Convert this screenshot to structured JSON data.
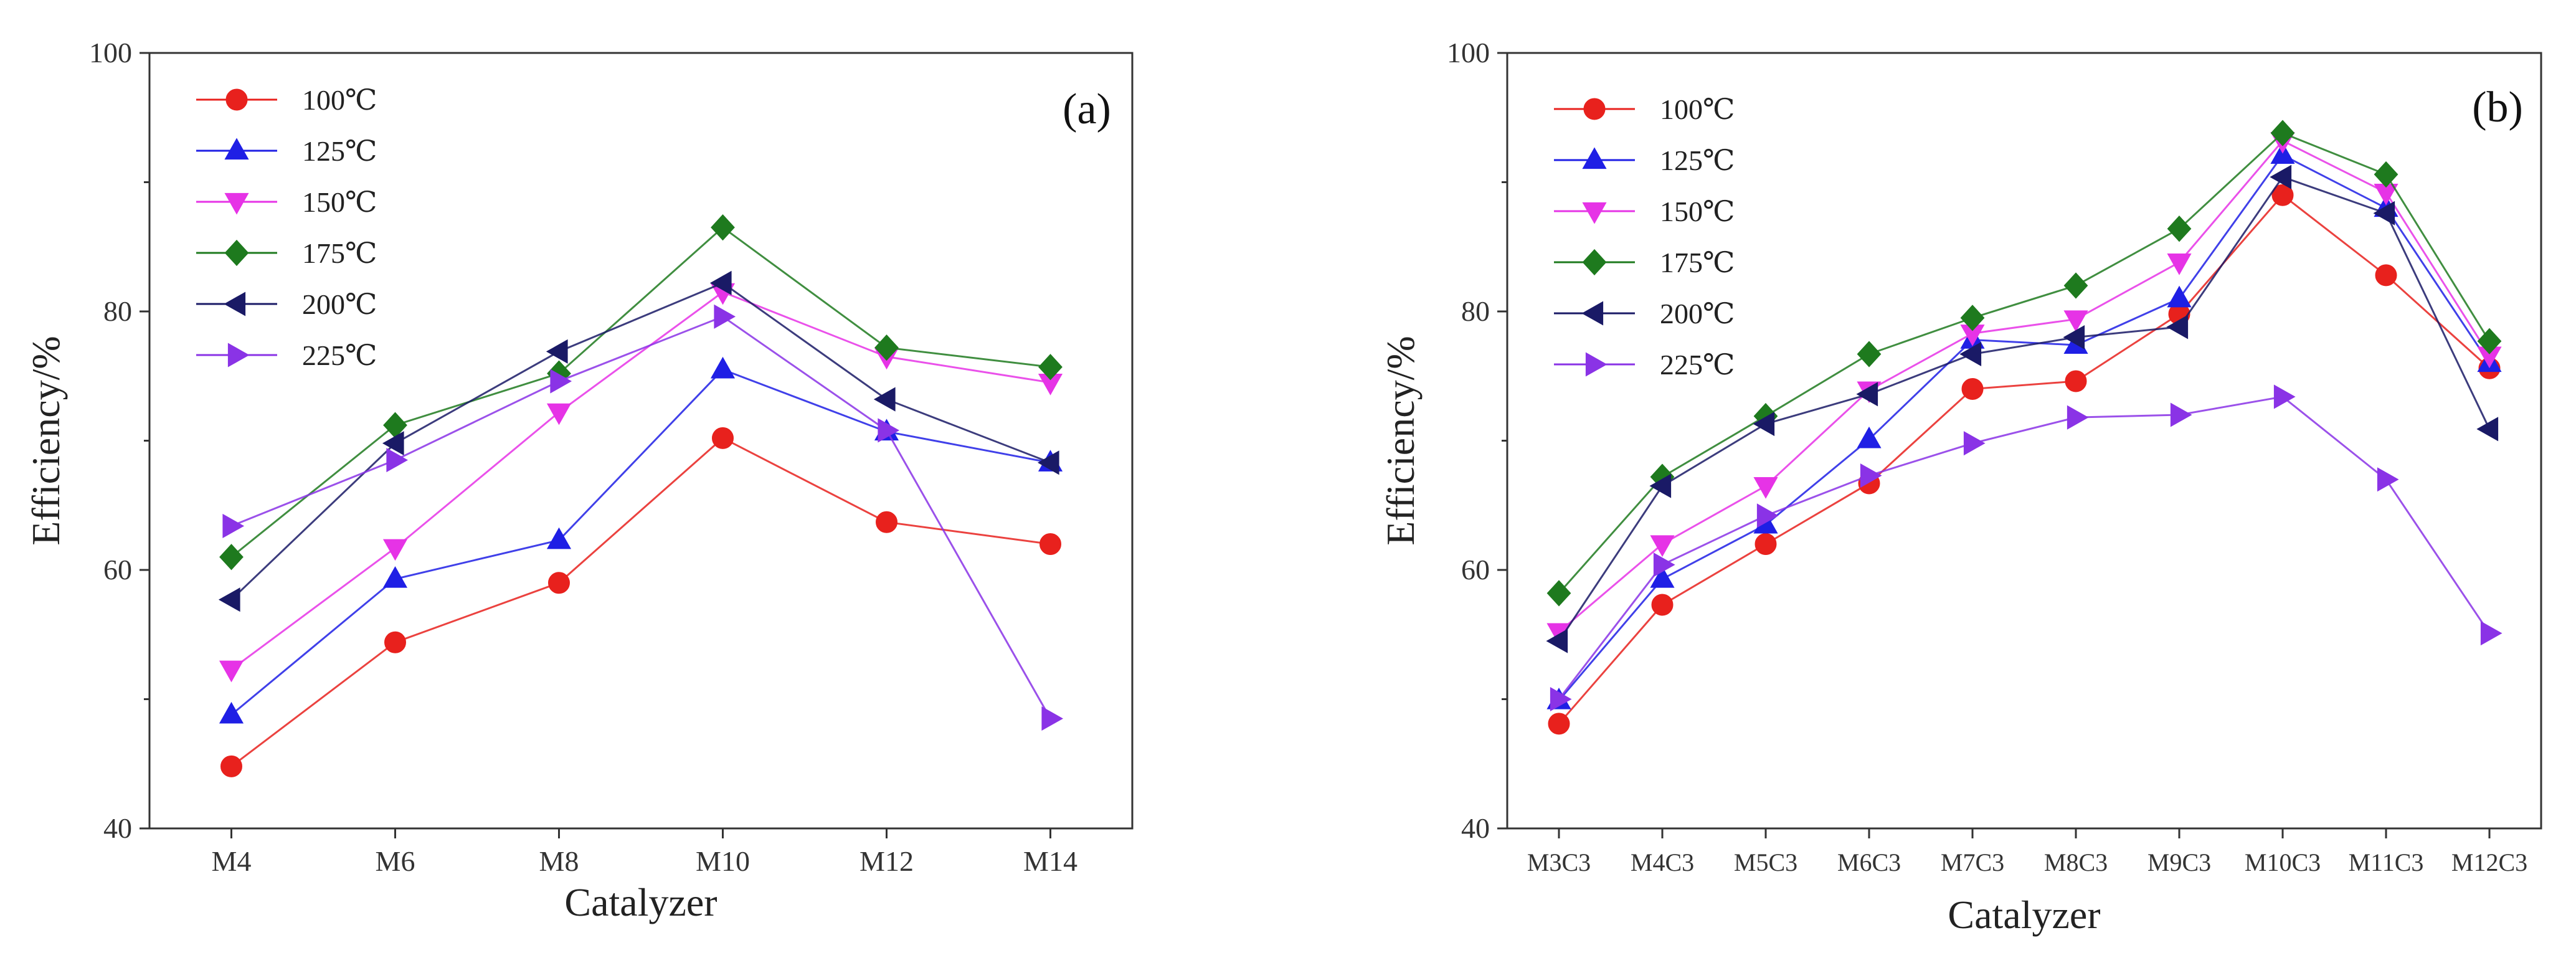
{
  "chart_data": [
    {
      "type": "line",
      "panel_label": "(a)",
      "xlabel": "Catalyzer",
      "ylabel": "Efficiency/%",
      "ylim": [
        40,
        100
      ],
      "yticks": [
        "40",
        "60",
        "80",
        "100"
      ],
      "categories": [
        "M4",
        "M6",
        "M8",
        "M10",
        "M12",
        "M14"
      ],
      "legend_position": "top-left",
      "series": [
        {
          "name": "100℃",
          "color": "#e8211d",
          "marker": "circle",
          "values": [
            44.8,
            54.4,
            59.0,
            70.2,
            63.7,
            62.0
          ]
        },
        {
          "name": "125℃",
          "color": "#1f1fe5",
          "marker": "triangle-up",
          "values": [
            48.8,
            59.3,
            62.3,
            75.5,
            70.7,
            68.3
          ]
        },
        {
          "name": "150℃",
          "color": "#e633e6",
          "marker": "triangle-down",
          "values": [
            52.3,
            61.7,
            72.2,
            81.5,
            76.5,
            74.5
          ]
        },
        {
          "name": "175℃",
          "color": "#1e7a1e",
          "marker": "diamond",
          "values": [
            61.0,
            71.2,
            75.2,
            86.5,
            77.2,
            75.7
          ]
        },
        {
          "name": "200℃",
          "color": "#1a1a66",
          "marker": "triangle-left",
          "values": [
            57.7,
            69.8,
            76.9,
            82.2,
            73.2,
            68.3
          ]
        },
        {
          "name": "225℃",
          "color": "#8a33e6",
          "marker": "triangle-right",
          "values": [
            63.4,
            68.5,
            74.6,
            79.6,
            70.8,
            48.5
          ]
        }
      ]
    },
    {
      "type": "line",
      "panel_label": "(b)",
      "xlabel": "Catalyzer",
      "ylabel": "Efficiency/%",
      "ylim": [
        40,
        100
      ],
      "yticks": [
        "40",
        "60",
        "80",
        "100"
      ],
      "categories": [
        "M3C3",
        "M4C3",
        "M5C3",
        "M6C3",
        "M7C3",
        "M8C3",
        "M9C3",
        "M10C3",
        "M11C3",
        "M12C3"
      ],
      "legend_position": "top-left",
      "series": [
        {
          "name": "100℃",
          "color": "#e8211d",
          "marker": "circle",
          "values": [
            48.1,
            57.3,
            62.0,
            66.7,
            74.0,
            74.6,
            79.8,
            89.0,
            82.8,
            75.6
          ]
        },
        {
          "name": "125℃",
          "color": "#1f1fe5",
          "marker": "triangle-up",
          "values": [
            49.9,
            59.3,
            63.5,
            70.1,
            77.8,
            77.4,
            81.0,
            92.1,
            88.0,
            76.0
          ]
        },
        {
          "name": "150℃",
          "color": "#e633e6",
          "marker": "triangle-down",
          "values": [
            55.2,
            62.0,
            66.5,
            73.9,
            78.3,
            79.4,
            83.8,
            93.2,
            89.2,
            76.6
          ]
        },
        {
          "name": "175℃",
          "color": "#1e7a1e",
          "marker": "diamond",
          "values": [
            58.2,
            67.2,
            71.9,
            76.7,
            79.5,
            82.0,
            86.4,
            93.8,
            90.6,
            77.7
          ]
        },
        {
          "name": "200℃",
          "color": "#1a1a66",
          "marker": "triangle-left",
          "values": [
            54.5,
            66.5,
            71.3,
            73.6,
            76.7,
            78.0,
            78.8,
            90.4,
            87.6,
            70.9
          ]
        },
        {
          "name": "225℃",
          "color": "#8a33e6",
          "marker": "triangle-right",
          "values": [
            50.0,
            60.4,
            64.2,
            67.3,
            69.8,
            71.8,
            72.0,
            73.4,
            67.0,
            55.1
          ]
        }
      ]
    }
  ]
}
